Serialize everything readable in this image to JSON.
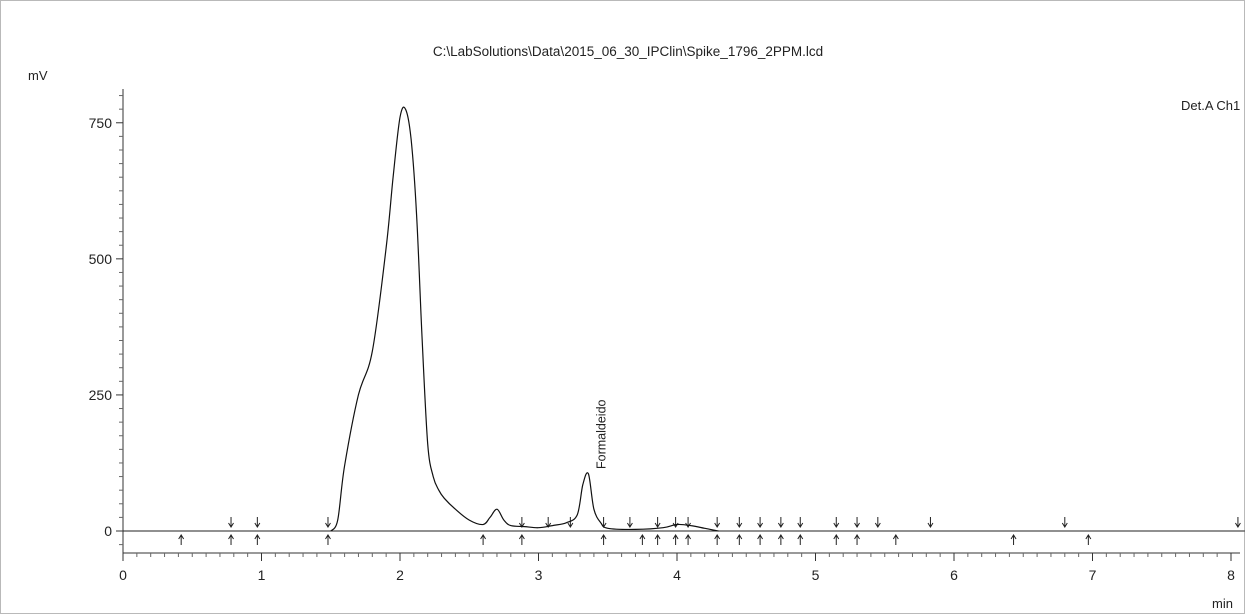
{
  "chart_data": {
    "type": "line",
    "title": "C:\\LabSolutions\\Data\\2015_06_30_IPClin\\Spike_1796_2PPM.lcd",
    "xlabel": "min",
    "ylabel": "mV",
    "channel_label": "Det.A Ch1",
    "xlim": [
      0,
      8.1
    ],
    "ylim": [
      -40,
      810
    ],
    "xticks": [
      "0",
      "1",
      "2",
      "3",
      "4",
      "5",
      "6",
      "7",
      "8"
    ],
    "yticks": [
      "0",
      "250",
      "500",
      "750"
    ],
    "grid": false,
    "series": [
      {
        "x": [
          1.5,
          1.55,
          1.6,
          1.7,
          1.8,
          1.9,
          1.95,
          2.0,
          2.04,
          2.08,
          2.12,
          2.16,
          2.2,
          2.24,
          2.28,
          2.32,
          2.4,
          2.5,
          2.6,
          2.65,
          2.7,
          2.75,
          2.8,
          2.9,
          3.0,
          3.1,
          3.2,
          3.28,
          3.32,
          3.36,
          3.4,
          3.45,
          3.5,
          3.7,
          3.9,
          4.0,
          4.1,
          4.2,
          4.3
        ],
        "y": [
          0,
          20,
          120,
          250,
          330,
          520,
          650,
          760,
          775,
          720,
          580,
          350,
          160,
          100,
          75,
          60,
          40,
          20,
          12,
          25,
          40,
          20,
          10,
          8,
          6,
          10,
          15,
          30,
          85,
          105,
          40,
          15,
          5,
          3,
          6,
          12,
          10,
          5,
          0
        ]
      }
    ],
    "baseline": [
      [
        0.0,
        0
      ],
      [
        8.1,
        0
      ]
    ],
    "peak_labels": [
      {
        "x": 3.36,
        "text": "Formaldeido"
      }
    ],
    "integration_marks_up": [
      0.78,
      0.97,
      1.48,
      2.88,
      3.07,
      3.23,
      3.47,
      3.66,
      3.86,
      3.99,
      4.08,
      4.29,
      4.45,
      4.6,
      4.75,
      4.89,
      5.15,
      5.3,
      5.45,
      5.83,
      6.8,
      8.05
    ],
    "integration_marks_down": [
      0.42,
      0.78,
      0.97,
      1.48,
      2.6,
      2.88,
      3.47,
      3.75,
      3.86,
      3.99,
      4.08,
      4.29,
      4.45,
      4.6,
      4.75,
      4.89,
      5.15,
      5.3,
      5.58,
      6.43,
      6.97
    ]
  }
}
